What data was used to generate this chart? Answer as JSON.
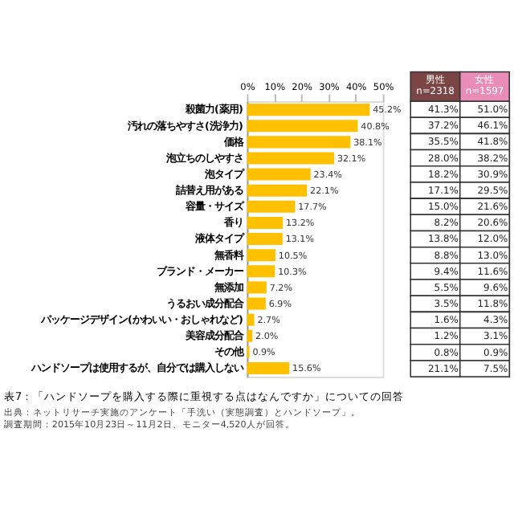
{
  "chart_data": [
    {
      "type": "bar",
      "orientation": "horizontal",
      "title": "表7：「ハンドソープを購入する際に重視する点はなんですか」についての回答",
      "annotations": [
        "出典：ネットリサーチ実施のアンケート「手洗い（実態調査）とハンドソープ」。",
        "調査期間：2015年10月23日～11月2日、モニター4,520人が回答。"
      ],
      "categories": [
        "殺菌力(薬用)",
        "汚れの落ちやすさ(洗浄力)",
        "価格",
        "泡立ちのしやすさ",
        "泡タイプ",
        "詰替え用がある",
        "容量・サイズ",
        "香り",
        "液体タイプ",
        "無香料",
        "ブランド・メーカー",
        "無添加",
        "うるおい成分配合",
        "パッケージデザイン(かわいい・おしゃれなど)",
        "美容成分配合",
        "その他",
        "ハンドソープは使用するが、自分では購入しない"
      ],
      "values": [
        45.2,
        40.8,
        38.1,
        32.1,
        23.4,
        22.1,
        17.7,
        13.2,
        13.1,
        10.5,
        10.3,
        7.2,
        6.9,
        2.7,
        2.0,
        0.9,
        15.6
      ],
      "value_labels": [
        "45.2%",
        "40.8%",
        "38.1%",
        "32.1%",
        "23.4%",
        "22.1%",
        "17.7%",
        "13.2%",
        "13.1%",
        "10.5%",
        "10.3%",
        "7.2%",
        "6.9%",
        "2.7%",
        "2.0%",
        "0.9%",
        "15.6%"
      ],
      "color": "#ffc000",
      "xlim": [
        0,
        50
      ],
      "xticks": [
        {
          "value": 0,
          "label": "0%"
        },
        {
          "value": 10,
          "label": "10%"
        },
        {
          "value": 20,
          "label": "20%"
        },
        {
          "value": 30,
          "label": "30%"
        },
        {
          "value": 40,
          "label": "40%"
        },
        {
          "value": 50,
          "label": "50%"
        }
      ],
      "grid": false
    },
    {
      "type": "other",
      "categories": [
        "男性\nn=2318",
        "女性\nn=1597"
      ],
      "colors": [
        "#7b4545",
        "#e98cb8"
      ],
      "cell_labels": [
        [
          "41.3%",
          "51.0%"
        ],
        [
          "37.2%",
          "46.1%"
        ],
        [
          "35.5%",
          "41.8%"
        ],
        [
          "28.0%",
          "38.2%"
        ],
        [
          "18.2%",
          "30.9%"
        ],
        [
          "17.1%",
          "29.5%"
        ],
        [
          "15.0%",
          "21.6%"
        ],
        [
          "8.2%",
          "20.6%"
        ],
        [
          "13.8%",
          "12.0%"
        ],
        [
          "8.8%",
          "13.0%"
        ],
        [
          "9.4%",
          "11.6%"
        ],
        [
          "5.5%",
          "9.6%"
        ],
        [
          "3.5%",
          "11.8%"
        ],
        [
          "1.6%",
          "4.3%"
        ],
        [
          "1.2%",
          "3.1%"
        ],
        [
          "0.8%",
          "0.9%"
        ],
        [
          "21.1%",
          "7.5%"
        ]
      ]
    }
  ]
}
